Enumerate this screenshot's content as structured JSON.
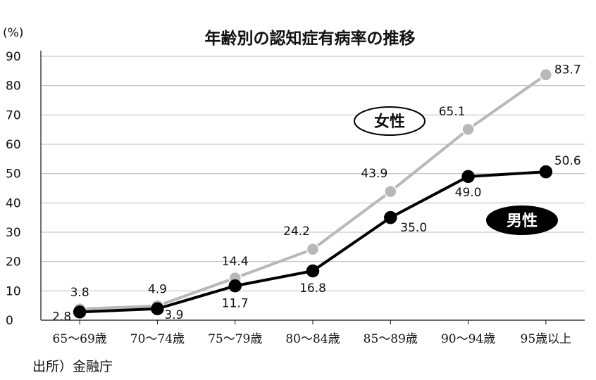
{
  "chart_data": {
    "type": "line",
    "title": "年齢別の認知症有病率の推移",
    "ylabel": "(%)",
    "xlabel": "",
    "ylim": [
      0,
      90
    ],
    "yticks": [
      0,
      10,
      20,
      30,
      40,
      50,
      60,
      70,
      80,
      90
    ],
    "grid": true,
    "categories": [
      "65～69歳",
      "70～74歳",
      "75～79歳",
      "80～84歳",
      "85～89歳",
      "90～94歳",
      "95歳以上"
    ],
    "series": [
      {
        "name": "女性",
        "values": [
          3.8,
          4.9,
          14.4,
          24.2,
          43.9,
          65.1,
          83.7
        ],
        "labels": [
          "3.8",
          "4.9",
          "14.4",
          "24.2",
          "43.9",
          "65.1",
          "83.7"
        ],
        "color": "#b8b8b8",
        "legend_style": "outline"
      },
      {
        "name": "男性",
        "values": [
          2.8,
          3.9,
          11.7,
          16.8,
          35.0,
          49.0,
          50.6
        ],
        "labels": [
          "2.8",
          "3.9",
          "11.7",
          "16.8",
          "35.0",
          "49.0",
          "50.6"
        ],
        "color": "#000000",
        "legend_style": "filled"
      }
    ],
    "source": "出所）金融庁"
  }
}
